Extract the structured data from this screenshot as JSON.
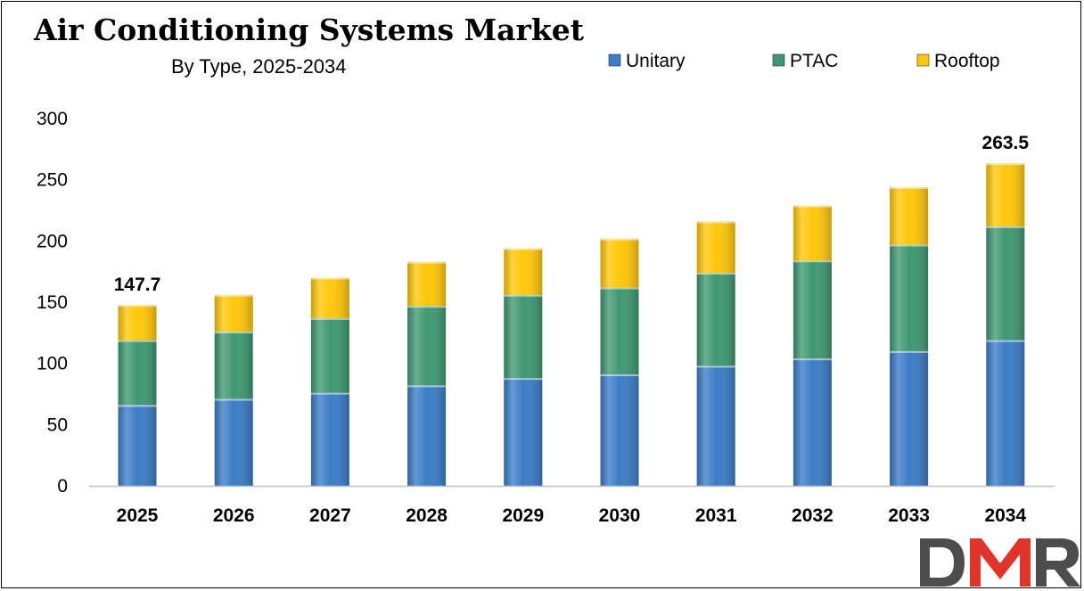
{
  "chart_data": {
    "type": "bar",
    "stacked": true,
    "title": "Air Conditioning Systems Market",
    "subtitle": "By Type, 2025-2034",
    "categories": [
      "2025",
      "2026",
      "2027",
      "2028",
      "2029",
      "2030",
      "2031",
      "2032",
      "2033",
      "2034"
    ],
    "series": [
      {
        "name": "Unitary",
        "color": "#3b7dc6",
        "values": [
          66,
          71,
          76,
          82,
          88,
          91,
          98,
          104,
          110,
          119
        ]
      },
      {
        "name": "PTAC",
        "color": "#3f9873",
        "values": [
          53,
          55,
          61,
          65,
          68,
          71,
          76,
          80,
          87,
          93
        ]
      },
      {
        "name": "Rooftop",
        "color": "#ffc709",
        "values": [
          28.7,
          30,
          33,
          36,
          38,
          40,
          42,
          45,
          47,
          51.5
        ]
      }
    ],
    "data_labels": [
      {
        "category": "2025",
        "text": "147.7"
      },
      {
        "category": "2034",
        "text": "263.5"
      }
    ],
    "ylim": [
      0,
      300
    ],
    "yticks": [
      0,
      50,
      100,
      150,
      200,
      250,
      300
    ],
    "xlabel": "",
    "ylabel": "",
    "grid": false,
    "legend_position": "top-right"
  },
  "logo": {
    "text": "DMR",
    "color_d": "#4d4d4d",
    "color_m": "#e0342b",
    "color_r": "#4d4d4d"
  }
}
